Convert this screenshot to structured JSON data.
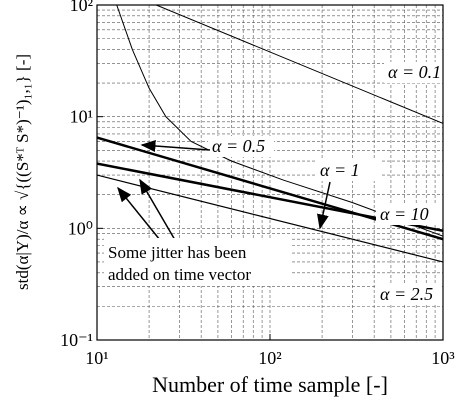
{
  "chart_data": {
    "type": "line",
    "xlabel": "Number of time sample [-]",
    "ylabel": "std(α|Y)/α ∝ √{((S*ᵀ S*)⁻¹)₁,₁} [-]",
    "xscale": "log",
    "yscale": "log",
    "grid": true,
    "xlim": [
      10,
      1000
    ],
    "ylim": [
      0.1,
      100
    ],
    "xticks": [
      {
        "value": 10,
        "label": "10¹"
      },
      {
        "value": 100,
        "label": "10²"
      },
      {
        "value": 1000,
        "label": "10³"
      }
    ],
    "yticks": [
      {
        "value": 0.1,
        "label": "10⁻¹"
      },
      {
        "value": 1,
        "label": "10⁰"
      },
      {
        "value": 10,
        "label": "10¹"
      },
      {
        "value": 100,
        "label": "10²"
      }
    ],
    "series": [
      {
        "name": "α = 0.1",
        "color": "#000000",
        "x": [
          22,
          1000
        ],
        "values": [
          100,
          8.7
        ]
      },
      {
        "name": "α = 0.5",
        "color": "#000000",
        "x": [
          13,
          16,
          20,
          25,
          35,
          60,
          120,
          300,
          1000
        ],
        "values": [
          100,
          40,
          18,
          10,
          6,
          4,
          2.7,
          1.7,
          0.85
        ]
      },
      {
        "name": "α = 1",
        "color": "#000000",
        "x": [
          10,
          1000
        ],
        "values": [
          6.5,
          0.8
        ]
      },
      {
        "name": "α = 10",
        "color": "#000000",
        "x": [
          10,
          1000
        ],
        "values": [
          3.8,
          0.95
        ]
      },
      {
        "name": "α = 2.5",
        "color": "#000000",
        "x": [
          10,
          1000
        ],
        "values": [
          3.0,
          0.5
        ]
      }
    ],
    "note": [
      "Some jitter has been",
      "added on time vector"
    ]
  }
}
